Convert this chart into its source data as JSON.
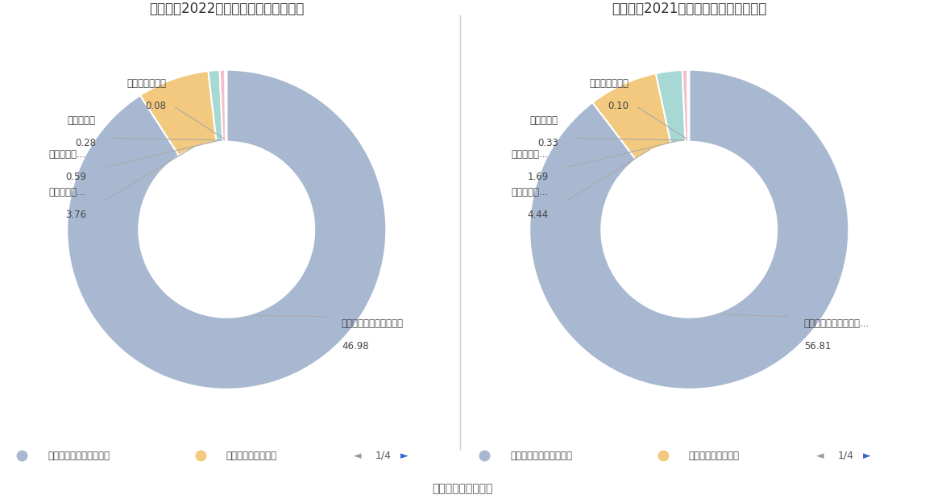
{
  "chart1": {
    "title": "英唐智控2022年营业收入构成（亿元）",
    "values": [
      46.98,
      3.76,
      0.59,
      0.28,
      0.08
    ],
    "colors": [
      "#A8B8D0",
      "#F2C97E",
      "#A8D8D4",
      "#F2C0C8",
      "#A8D0E8"
    ],
    "slice_labels": [
      "电子元器件产品（分销）",
      "电子元器件...",
      "生活电器智...",
      "物联网产品",
      "软件销售及维护"
    ],
    "slice_values_str": [
      "46.98",
      "3.76",
      "0.59",
      "0.28",
      "0.08"
    ]
  },
  "chart2": {
    "title": "英唐智控2021年营业收入构成（亿元）",
    "values": [
      56.81,
      4.44,
      1.69,
      0.33,
      0.1
    ],
    "colors": [
      "#A8B8D0",
      "#F2C97E",
      "#A8D8D4",
      "#F2C0C8",
      "#A8D0E8"
    ],
    "slice_labels": [
      "电子元器件产品（分销...",
      "电子元器件...",
      "生活电器智...",
      "物联网产品",
      "软件销售及维护"
    ],
    "slice_values_str": [
      "56.81",
      "4.44",
      "1.69",
      "0.33",
      "0.10"
    ]
  },
  "legend_labels": [
    "电子元器件产品（分销）",
    "电子元器件产品（制"
  ],
  "legend_colors": [
    "#A8B8D0",
    "#F2C97E"
  ],
  "nav_text": "1/4",
  "footer": "数据来源：恒生聚源",
  "bg_color": "#FFFFFF",
  "text_color": "#555555",
  "line_color": "#CCCCCC"
}
